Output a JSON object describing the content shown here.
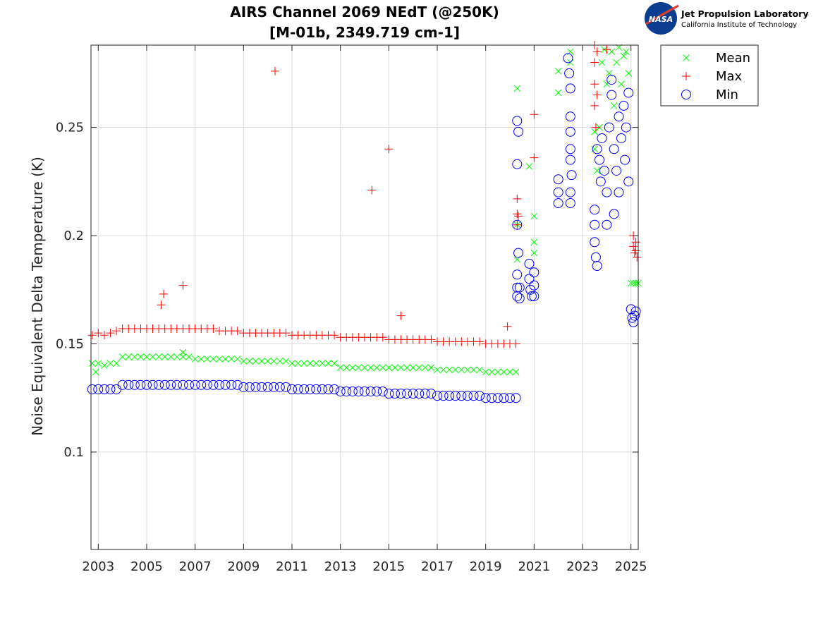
{
  "chart_data": {
    "type": "scatter",
    "title": "AIRS Channel 2069 NEdT (@250K)",
    "subtitle": "[M-01b, 2349.719 cm-1]",
    "xlabel": "",
    "ylabel": "Noise Equivalent Delta Temperature (K)",
    "xlim": [
      2002.7,
      2025.3
    ],
    "ylim": [
      0.055,
      0.288
    ],
    "xticks": [
      "2003",
      "2005",
      "2007",
      "2009",
      "2011",
      "2013",
      "2015",
      "2017",
      "2019",
      "2021",
      "2023",
      "2025"
    ],
    "yticks": [
      "0.1",
      "0.15",
      "0.2",
      "0.25"
    ],
    "grid": true,
    "legend_placement": "outside-top-right",
    "x": [
      2002.75,
      2003.0,
      2003.25,
      2003.5,
      2003.75,
      2004.0,
      2004.25,
      2004.5,
      2004.75,
      2005.0,
      2005.25,
      2005.5,
      2005.75,
      2006.0,
      2006.25,
      2006.5,
      2006.75,
      2007.0,
      2007.25,
      2007.5,
      2007.75,
      2008.0,
      2008.25,
      2008.5,
      2008.75,
      2009.0,
      2009.25,
      2009.5,
      2009.75,
      2010.0,
      2010.25,
      2010.5,
      2010.75,
      2011.0,
      2011.25,
      2011.5,
      2011.75,
      2012.0,
      2012.25,
      2012.5,
      2012.75,
      2013.0,
      2013.25,
      2013.5,
      2013.75,
      2014.0,
      2014.25,
      2014.5,
      2014.75,
      2015.0,
      2015.25,
      2015.5,
      2015.75,
      2016.0,
      2016.25,
      2016.5,
      2016.75,
      2017.0,
      2017.25,
      2017.5,
      2017.75,
      2018.0,
      2018.25,
      2018.5,
      2018.75,
      2019.0,
      2019.25,
      2019.5,
      2019.75,
      2020.0,
      2020.25
    ],
    "series": [
      {
        "name": "Mean",
        "marker": "x",
        "color": "#00ff00",
        "y": [
          0.141,
          0.141,
          0.14,
          0.141,
          0.141,
          0.144,
          0.144,
          0.144,
          0.144,
          0.144,
          0.144,
          0.144,
          0.144,
          0.144,
          0.144,
          0.144,
          0.144,
          0.143,
          0.143,
          0.143,
          0.143,
          0.143,
          0.143,
          0.143,
          0.143,
          0.142,
          0.142,
          0.142,
          0.142,
          0.142,
          0.142,
          0.142,
          0.142,
          0.141,
          0.141,
          0.141,
          0.141,
          0.141,
          0.141,
          0.141,
          0.141,
          0.139,
          0.139,
          0.139,
          0.139,
          0.139,
          0.139,
          0.139,
          0.139,
          0.139,
          0.139,
          0.139,
          0.139,
          0.139,
          0.139,
          0.139,
          0.139,
          0.138,
          0.138,
          0.138,
          0.138,
          0.138,
          0.138,
          0.138,
          0.138,
          0.137,
          0.137,
          0.137,
          0.137,
          0.137,
          0.137
        ],
        "extra_points": [
          [
            2006.5,
            0.146
          ],
          [
            2002.9,
            0.137
          ],
          [
            2020.3,
            0.189
          ],
          [
            2020.3,
            0.205
          ],
          [
            2020.3,
            0.268
          ],
          [
            2020.8,
            0.232
          ],
          [
            2021.0,
            0.209
          ],
          [
            2021.0,
            0.197
          ],
          [
            2021.0,
            0.192
          ],
          [
            2022.0,
            0.276
          ],
          [
            2022.0,
            0.266
          ],
          [
            2022.5,
            0.285
          ],
          [
            2022.5,
            0.28
          ],
          [
            2023.5,
            0.24
          ],
          [
            2023.5,
            0.248
          ],
          [
            2023.6,
            0.23
          ],
          [
            2023.7,
            0.25
          ],
          [
            2023.8,
            0.28
          ],
          [
            2023.9,
            0.286
          ],
          [
            2024.0,
            0.27
          ],
          [
            2024.1,
            0.275
          ],
          [
            2024.2,
            0.285
          ],
          [
            2024.3,
            0.26
          ],
          [
            2024.4,
            0.28
          ],
          [
            2024.5,
            0.287
          ],
          [
            2024.6,
            0.27
          ],
          [
            2024.7,
            0.283
          ],
          [
            2024.8,
            0.285
          ],
          [
            2024.9,
            0.275
          ],
          [
            2025.0,
            0.178
          ],
          [
            2025.1,
            0.178
          ],
          [
            2025.2,
            0.178
          ],
          [
            2025.3,
            0.178
          ]
        ]
      },
      {
        "name": "Max",
        "marker": "+",
        "color": "#ff0000",
        "y": [
          0.154,
          0.155,
          0.154,
          0.155,
          0.156,
          0.157,
          0.157,
          0.157,
          0.157,
          0.157,
          0.157,
          0.157,
          0.157,
          0.157,
          0.157,
          0.157,
          0.157,
          0.157,
          0.157,
          0.157,
          0.157,
          0.156,
          0.156,
          0.156,
          0.156,
          0.155,
          0.155,
          0.155,
          0.155,
          0.155,
          0.155,
          0.155,
          0.155,
          0.154,
          0.154,
          0.154,
          0.154,
          0.154,
          0.154,
          0.154,
          0.154,
          0.153,
          0.153,
          0.153,
          0.153,
          0.153,
          0.153,
          0.153,
          0.153,
          0.152,
          0.152,
          0.152,
          0.152,
          0.152,
          0.152,
          0.152,
          0.152,
          0.151,
          0.151,
          0.151,
          0.151,
          0.151,
          0.151,
          0.151,
          0.151,
          0.15,
          0.15,
          0.15,
          0.15,
          0.15,
          0.15
        ],
        "extra_points": [
          [
            2005.6,
            0.168
          ],
          [
            2005.7,
            0.173
          ],
          [
            2006.5,
            0.177
          ],
          [
            2010.3,
            0.276
          ],
          [
            2014.3,
            0.221
          ],
          [
            2015.0,
            0.24
          ],
          [
            2015.5,
            0.163
          ],
          [
            2019.9,
            0.158
          ],
          [
            2020.3,
            0.217
          ],
          [
            2020.3,
            0.21
          ],
          [
            2020.3,
            0.205
          ],
          [
            2020.35,
            0.209
          ],
          [
            2021.0,
            0.256
          ],
          [
            2021.0,
            0.236
          ],
          [
            2023.5,
            0.288
          ],
          [
            2023.5,
            0.28
          ],
          [
            2023.5,
            0.27
          ],
          [
            2023.5,
            0.26
          ],
          [
            2023.55,
            0.25
          ],
          [
            2023.6,
            0.285
          ],
          [
            2023.6,
            0.265
          ],
          [
            2024.0,
            0.286
          ],
          [
            2025.1,
            0.2
          ],
          [
            2025.1,
            0.195
          ],
          [
            2025.15,
            0.192
          ],
          [
            2025.2,
            0.197
          ],
          [
            2025.2,
            0.193
          ],
          [
            2025.25,
            0.19
          ]
        ]
      },
      {
        "name": "Min",
        "marker": "o",
        "color": "#0000ff",
        "y": [
          0.129,
          0.129,
          0.129,
          0.129,
          0.129,
          0.131,
          0.131,
          0.131,
          0.131,
          0.131,
          0.131,
          0.131,
          0.131,
          0.131,
          0.131,
          0.131,
          0.131,
          0.131,
          0.131,
          0.131,
          0.131,
          0.131,
          0.131,
          0.131,
          0.131,
          0.13,
          0.13,
          0.13,
          0.13,
          0.13,
          0.13,
          0.13,
          0.13,
          0.129,
          0.129,
          0.129,
          0.129,
          0.129,
          0.129,
          0.129,
          0.129,
          0.128,
          0.128,
          0.128,
          0.128,
          0.128,
          0.128,
          0.128,
          0.128,
          0.127,
          0.127,
          0.127,
          0.127,
          0.127,
          0.127,
          0.127,
          0.127,
          0.126,
          0.126,
          0.126,
          0.126,
          0.126,
          0.126,
          0.126,
          0.126,
          0.125,
          0.125,
          0.125,
          0.125,
          0.125,
          0.125
        ],
        "extra_points": [
          [
            2020.3,
            0.253
          ],
          [
            2020.3,
            0.233
          ],
          [
            2020.35,
            0.248
          ],
          [
            2020.3,
            0.205
          ],
          [
            2020.35,
            0.192
          ],
          [
            2020.3,
            0.182
          ],
          [
            2020.3,
            0.176
          ],
          [
            2020.3,
            0.172
          ],
          [
            2020.4,
            0.176
          ],
          [
            2020.4,
            0.171
          ],
          [
            2020.8,
            0.187
          ],
          [
            2020.8,
            0.18
          ],
          [
            2020.85,
            0.175
          ],
          [
            2020.9,
            0.172
          ],
          [
            2021.0,
            0.183
          ],
          [
            2021.0,
            0.177
          ],
          [
            2021.0,
            0.172
          ],
          [
            2022.0,
            0.226
          ],
          [
            2022.0,
            0.22
          ],
          [
            2022.0,
            0.215
          ],
          [
            2022.4,
            0.282
          ],
          [
            2022.45,
            0.275
          ],
          [
            2022.5,
            0.268
          ],
          [
            2022.5,
            0.255
          ],
          [
            2022.5,
            0.248
          ],
          [
            2022.5,
            0.24
          ],
          [
            2022.5,
            0.235
          ],
          [
            2022.55,
            0.228
          ],
          [
            2022.5,
            0.22
          ],
          [
            2022.5,
            0.215
          ],
          [
            2023.5,
            0.212
          ],
          [
            2023.5,
            0.205
          ],
          [
            2023.5,
            0.197
          ],
          [
            2023.55,
            0.19
          ],
          [
            2023.6,
            0.186
          ],
          [
            2023.6,
            0.24
          ],
          [
            2023.7,
            0.235
          ],
          [
            2023.75,
            0.225
          ],
          [
            2023.8,
            0.245
          ],
          [
            2023.9,
            0.23
          ],
          [
            2024.0,
            0.22
          ],
          [
            2024.0,
            0.205
          ],
          [
            2024.1,
            0.25
          ],
          [
            2024.2,
            0.265
          ],
          [
            2024.2,
            0.272
          ],
          [
            2024.3,
            0.24
          ],
          [
            2024.3,
            0.21
          ],
          [
            2024.4,
            0.23
          ],
          [
            2024.5,
            0.22
          ],
          [
            2024.5,
            0.255
          ],
          [
            2024.6,
            0.245
          ],
          [
            2024.7,
            0.26
          ],
          [
            2024.75,
            0.235
          ],
          [
            2024.8,
            0.25
          ],
          [
            2024.9,
            0.225
          ],
          [
            2024.9,
            0.266
          ],
          [
            2025.0,
            0.166
          ],
          [
            2025.05,
            0.162
          ],
          [
            2025.1,
            0.16
          ],
          [
            2025.15,
            0.163
          ],
          [
            2025.2,
            0.165
          ]
        ]
      }
    ]
  },
  "logo": {
    "org_name": "Jet Propulsion Laboratory",
    "org_sub": "California Institute of Technology",
    "badge_text": "NASA"
  }
}
